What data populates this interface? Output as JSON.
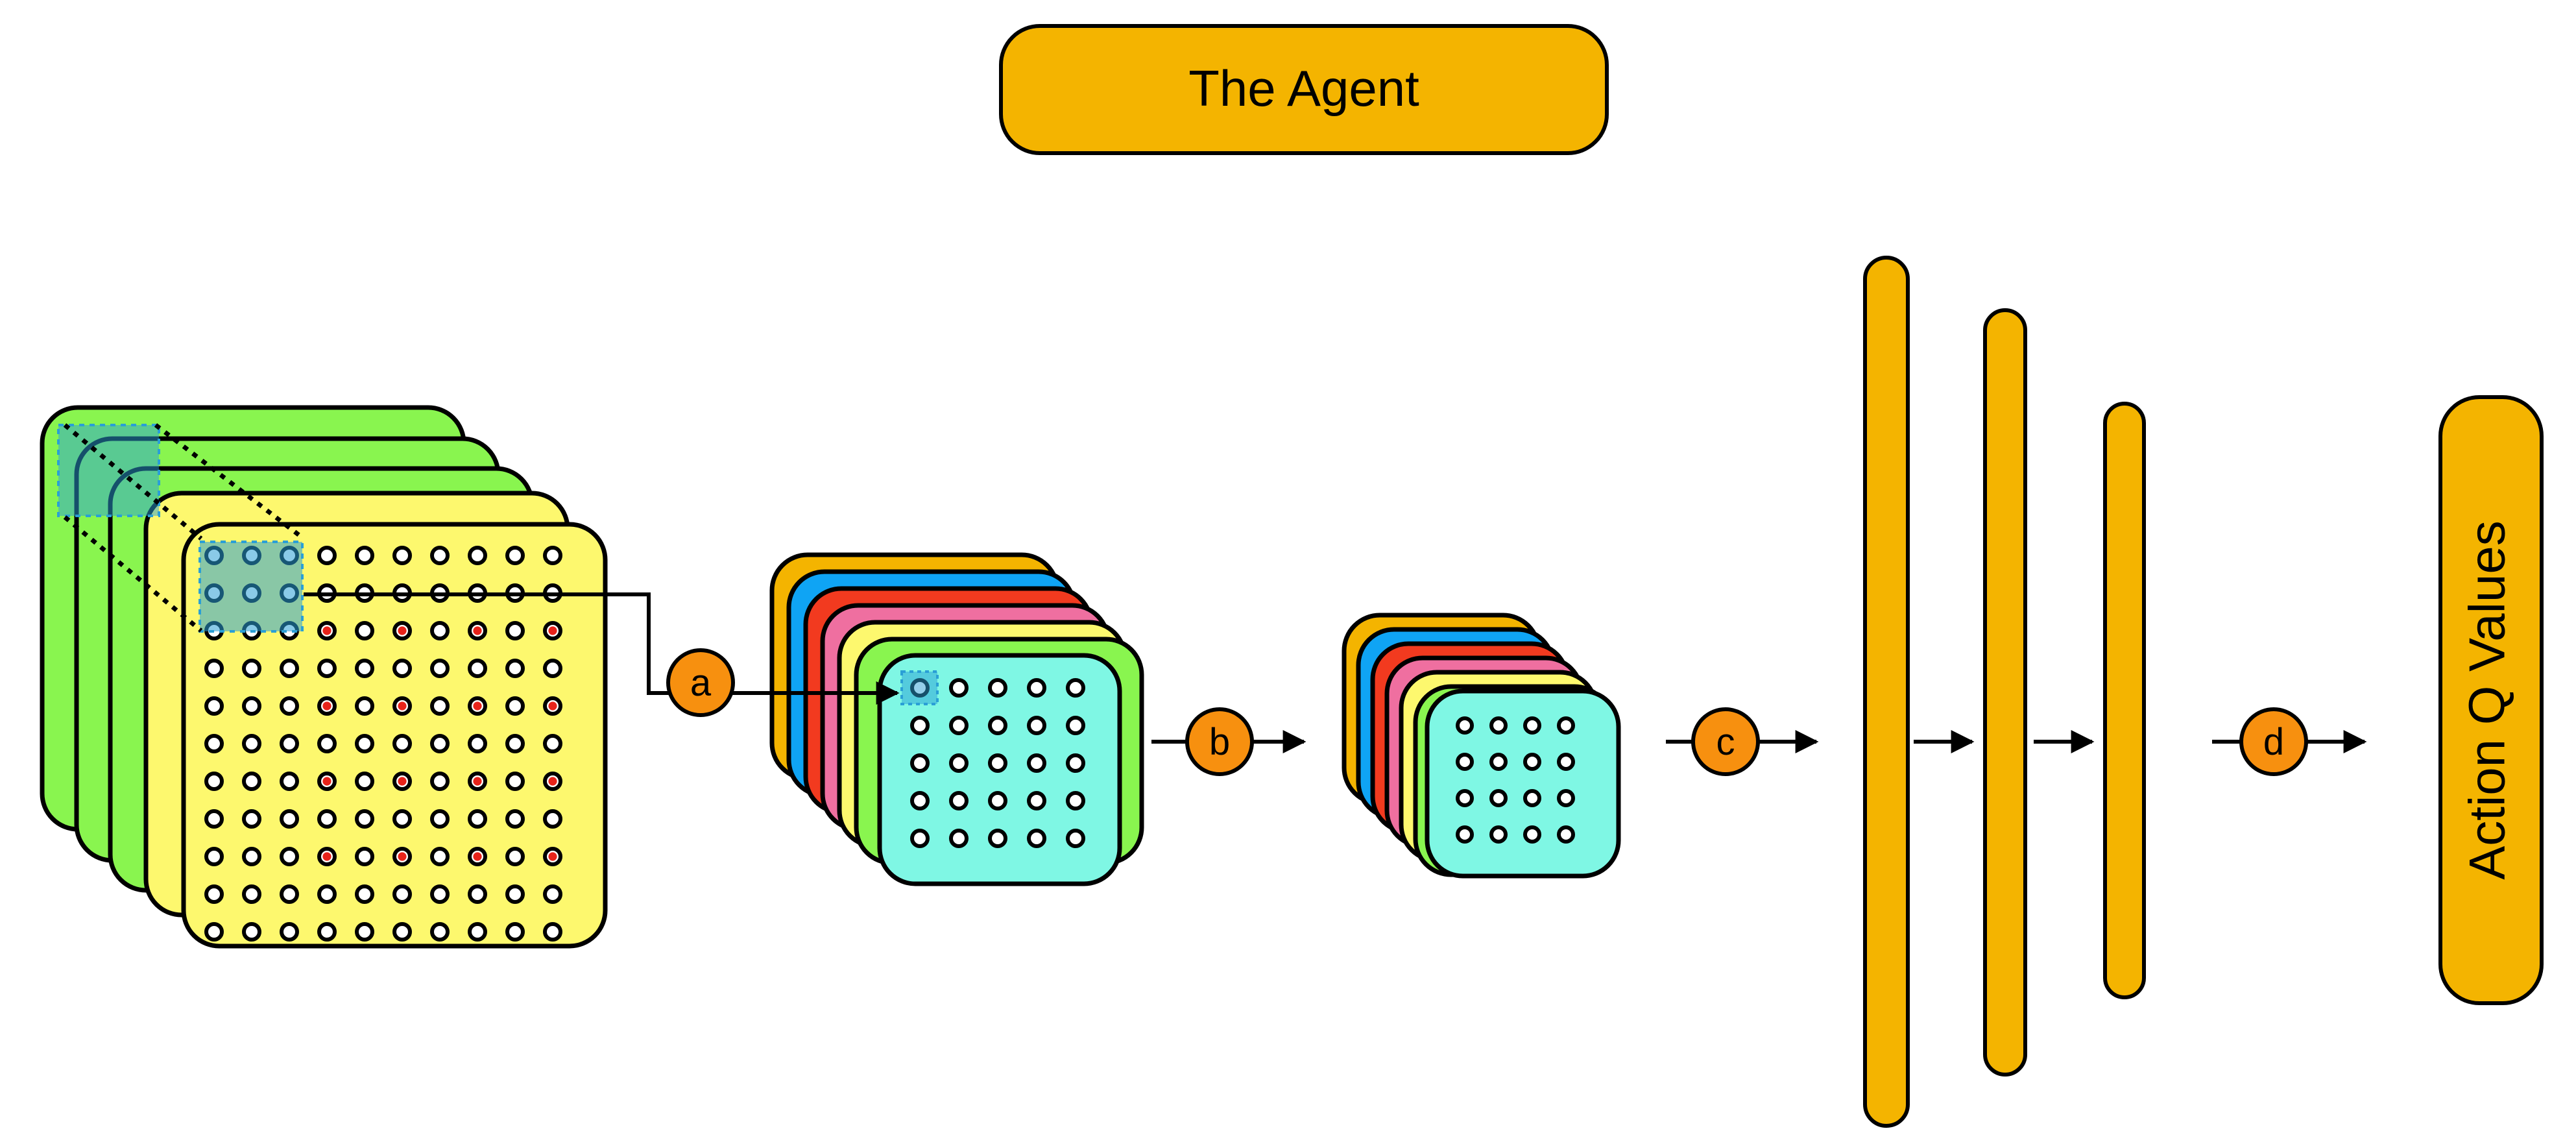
{
  "title": "The Agent",
  "output_label": "Action Q Values",
  "steps": [
    "a",
    "b",
    "c",
    "d"
  ],
  "input_stack": {
    "frames": 4,
    "grid": [
      11,
      10
    ],
    "frame_colors": [
      "#89f54f",
      "#89f54f",
      "#89f54f",
      "#fdf86e"
    ]
  },
  "conv1_stack": {
    "grid": [
      5,
      5
    ],
    "colors": [
      "#f4b400",
      "#0fa4f4",
      "#f23a1f",
      "#ef6fa0",
      "#fdf86e",
      "#89f54f",
      "#7ff7e4"
    ]
  },
  "conv2_stack": {
    "grid": [
      4,
      4
    ],
    "colors": [
      "#f4b400",
      "#0fa4f4",
      "#f23a1f",
      "#ef6fa0",
      "#fdf86e",
      "#89f54f",
      "#7ff7e4"
    ]
  },
  "dense_layers": 3,
  "colors": {
    "agent": "#f4b400",
    "badge": "#f7900f",
    "stroke": "#000000",
    "highlight": "#2a9fd6",
    "red_dot": "#e8231a"
  }
}
